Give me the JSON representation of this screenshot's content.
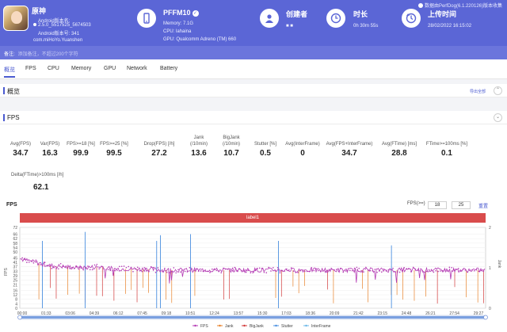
{
  "brand": "数据由PerfDog(6.1.220126)版本收集",
  "app": {
    "name": "原神",
    "android_label": "Android版本名:",
    "android_version_name": "2.5.0_5517525_5674503",
    "android_version_code": "Android版本号: 341",
    "package": "com.miHoYo.Yuanshen"
  },
  "device": {
    "model": "PFFM10",
    "memory": "Memory: 7.1G",
    "cpu": "CPU: lahaina",
    "gpu": "GPU: Qualcomm Adreno (TM) 660"
  },
  "creator": {
    "label": "创建者",
    "value": "■ ■"
  },
  "duration": {
    "label": "时长",
    "value": "0h 30m 55s"
  },
  "upload": {
    "label": "上传时间",
    "value": "28/02/2022 16:15:02"
  },
  "note": {
    "label": "备注:",
    "placeholder": "添加备注，不超过200个字符"
  },
  "tabs": [
    "概览",
    "FPS",
    "CPU",
    "Memory",
    "GPU",
    "Network",
    "Battery"
  ],
  "sections": {
    "overview": {
      "title": "概览",
      "export": "导出全部"
    },
    "fps": {
      "title": "FPS"
    }
  },
  "stats": [
    {
      "label": "Avg(FPS)",
      "value": "34.7"
    },
    {
      "label": "Var(FPS)",
      "value": "16.3"
    },
    {
      "label": "FPS>=18 [%]",
      "value": "99.9"
    },
    {
      "label": "FPS>=25 [%]",
      "value": "99.5"
    },
    {
      "label": "Drop(FPS) [/h]",
      "value": "27.2"
    },
    {
      "label": "Jank\n(/10min)",
      "value": "13.6"
    },
    {
      "label": "BigJank\n(/10min)",
      "value": "10.7"
    },
    {
      "label": "Stutter [%]",
      "value": "0.5"
    },
    {
      "label": "Avg(InterFrame)",
      "value": "0"
    },
    {
      "label": "Avg(FPS+InterFrame)",
      "value": "34.7"
    },
    {
      "label": "Avg(FTime) [ms]",
      "value": "28.8"
    },
    {
      "label": "FTime>=100ms [%]",
      "value": "0.1"
    },
    {
      "label": "Delta(FTime)>100ms [/h]",
      "value": "62.1"
    }
  ],
  "chart_controls": {
    "title": "FPS",
    "fps_threshold_label": "FPS(>=)",
    "fps_threshold_1": "18",
    "fps_threshold_2": "25",
    "reset": "重置"
  },
  "chart_data": {
    "type": "line",
    "band_label": "label1",
    "ylabel": "FPS",
    "y2label": "Jank",
    "ylim": [
      0,
      72
    ],
    "y2lim": [
      0,
      2
    ],
    "yticks": [
      0,
      4,
      8,
      12,
      16,
      21,
      25,
      29,
      33,
      37,
      41,
      45,
      50,
      54,
      58,
      62,
      66,
      72
    ],
    "y2ticks": [
      0,
      1,
      2
    ],
    "x_tick_labels": [
      "00:00",
      "01:33",
      "03:06",
      "04:39",
      "06:12",
      "07:45",
      "09:18",
      "10:51",
      "12:24",
      "13:57",
      "15:30",
      "17:03",
      "18:36",
      "20:09",
      "21:42",
      "23:15",
      "24:48",
      "26:21",
      "27:54",
      "29:27"
    ],
    "fps_profile": [
      {
        "t": 0,
        "fps": 44
      },
      {
        "t": 60,
        "fps": 41
      },
      {
        "t": 120,
        "fps": 38
      },
      {
        "t": 240,
        "fps": 36
      },
      {
        "t": 330,
        "fps": 37
      },
      {
        "t": 370,
        "fps": 35
      },
      {
        "t": 460,
        "fps": 35
      },
      {
        "t": 600,
        "fps": 34
      },
      {
        "t": 900,
        "fps": 34
      },
      {
        "t": 1200,
        "fps": 34
      },
      {
        "t": 1500,
        "fps": 34
      },
      {
        "t": 1855,
        "fps": 34
      }
    ],
    "stutter_spikes": [
      {
        "t": 90,
        "v": 60
      },
      {
        "t": 260,
        "v": 68
      },
      {
        "t": 545,
        "v": 60
      },
      {
        "t": 560,
        "v": 65
      },
      {
        "t": 680,
        "v": 66
      },
      {
        "t": 1030,
        "v": 60
      },
      {
        "t": 1480,
        "v": 56
      }
    ],
    "series": [
      {
        "name": "FPS",
        "color": "#b43ab4"
      },
      {
        "name": "Jank",
        "color": "#e8822a"
      },
      {
        "name": "BigJank",
        "color": "#d23a3a"
      },
      {
        "name": "Stutter",
        "color": "#4a8fe0"
      },
      {
        "name": "InterFrame",
        "color": "#6bb8e8"
      }
    ],
    "legend_position": "bottom",
    "duration_seconds": 1855
  }
}
